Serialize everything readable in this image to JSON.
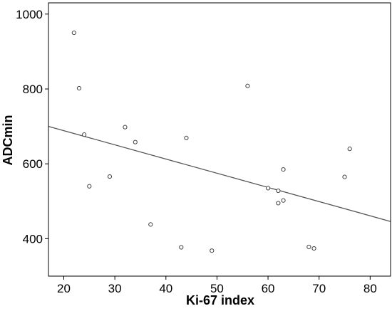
{
  "chart_data": {
    "type": "scatter",
    "xlabel": "Ki-67 index",
    "ylabel": "ADCmin",
    "xlim": [
      17,
      84
    ],
    "ylim": [
      300,
      1030
    ],
    "x_ticks": [
      20,
      30,
      40,
      50,
      60,
      70,
      80
    ],
    "y_ticks": [
      400,
      600,
      800,
      1000
    ],
    "grid": false,
    "legend": "none",
    "marker": "hollow-circle",
    "colors": {
      "marker_stroke": "#444444",
      "fit_line": "#555555",
      "axes": "#000000"
    },
    "points": [
      {
        "x": 22,
        "y": 950
      },
      {
        "x": 23,
        "y": 802
      },
      {
        "x": 24,
        "y": 678
      },
      {
        "x": 25,
        "y": 540
      },
      {
        "x": 29,
        "y": 566
      },
      {
        "x": 32,
        "y": 698
      },
      {
        "x": 34,
        "y": 658
      },
      {
        "x": 37,
        "y": 438
      },
      {
        "x": 43,
        "y": 377
      },
      {
        "x": 44,
        "y": 669
      },
      {
        "x": 49,
        "y": 368
      },
      {
        "x": 56,
        "y": 808
      },
      {
        "x": 60,
        "y": 535
      },
      {
        "x": 62,
        "y": 528
      },
      {
        "x": 62,
        "y": 495
      },
      {
        "x": 63,
        "y": 585
      },
      {
        "x": 63,
        "y": 502
      },
      {
        "x": 68,
        "y": 378
      },
      {
        "x": 69,
        "y": 374
      },
      {
        "x": 75,
        "y": 565
      },
      {
        "x": 76,
        "y": 640
      }
    ],
    "fit_line": {
      "x": [
        17,
        84
      ],
      "y": [
        700,
        446
      ]
    }
  }
}
